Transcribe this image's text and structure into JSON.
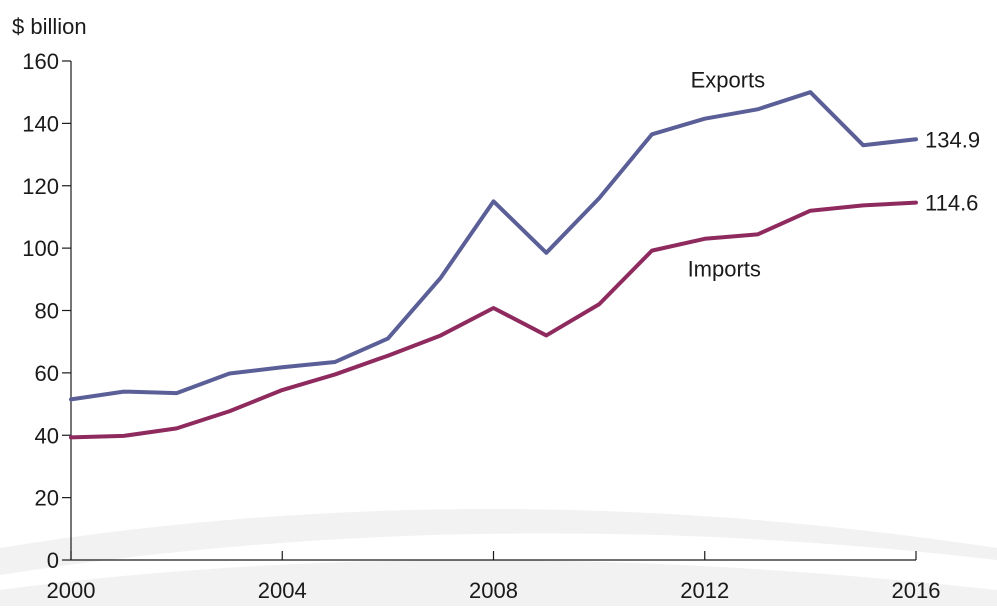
{
  "chart_data": {
    "type": "line",
    "unit_label": "$ billion",
    "x": [
      2000,
      2001,
      2002,
      2003,
      2004,
      2005,
      2006,
      2007,
      2008,
      2009,
      2010,
      2011,
      2012,
      2013,
      2014,
      2015,
      2016
    ],
    "xlim": [
      2000,
      2016
    ],
    "ylim": [
      0,
      160
    ],
    "x_ticks": [
      2000,
      2004,
      2008,
      2012,
      2016
    ],
    "y_ticks": [
      0,
      20,
      40,
      60,
      80,
      100,
      120,
      140,
      160
    ],
    "x_tick_labels": [
      "2000",
      "2004",
      "2008",
      "2012",
      "2016"
    ],
    "y_tick_labels": [
      "0",
      "20",
      "40",
      "60",
      "80",
      "100",
      "120",
      "140",
      "160"
    ],
    "grid": false,
    "legend": "none",
    "series": [
      {
        "name": "Exports",
        "color": "#5b5f97",
        "values": [
          51.5,
          54,
          53.5,
          59.8,
          61.8,
          63.5,
          71,
          90.5,
          115,
          98.5,
          116,
          136.5,
          141.5,
          144.5,
          150,
          133,
          134.9
        ],
        "end_label": "134.9"
      },
      {
        "name": "Imports",
        "color": "#8e2a5e",
        "values": [
          39.3,
          39.8,
          42.2,
          47.7,
          54.5,
          59.5,
          65.5,
          72,
          80.8,
          72,
          82,
          99.2,
          103,
          104.4,
          112,
          113.7,
          114.6
        ],
        "end_label": "114.6"
      }
    ]
  }
}
